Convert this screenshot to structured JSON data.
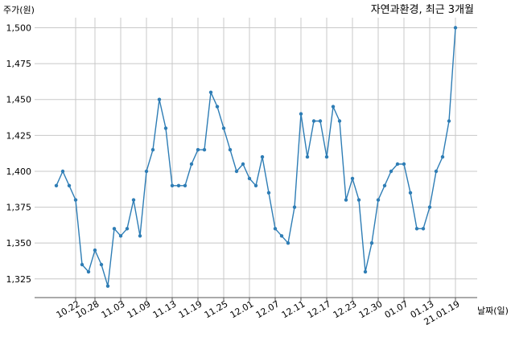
{
  "chart_data": {
    "type": "line",
    "title": "자연과환경, 최근 3개월",
    "xlabel": "날짜(일)",
    "ylabel": "주가(원)",
    "ylim": [
      1312,
      1507
    ],
    "yticks": [
      1325,
      1350,
      1375,
      1400,
      1425,
      1450,
      1475,
      1500
    ],
    "ytick_labels": [
      "1,325",
      "1,350",
      "1,375",
      "1,400",
      "1,425",
      "1,450",
      "1,475",
      "1,500"
    ],
    "xtick_labels": [
      "10.22",
      "10.28",
      "11.03",
      "11.09",
      "11.13",
      "11.19",
      "11.25",
      "12.01",
      "12.07",
      "12.11",
      "12.17",
      "12.23",
      "12.30",
      "01.07",
      "01.13",
      "21.01.19"
    ],
    "xtick_index": [
      3,
      6,
      10,
      14,
      18,
      22,
      26,
      30,
      34,
      38,
      42,
      46,
      50,
      54,
      58,
      62
    ],
    "grid": true,
    "series": [
      {
        "color": "#2e7db5",
        "values": [
          1390,
          1400,
          1390,
          1380,
          1335,
          1330,
          1345,
          1335,
          1320,
          1360,
          1355,
          1360,
          1380,
          1355,
          1400,
          1415,
          1450,
          1430,
          1390,
          1390,
          1390,
          1405,
          1415,
          1415,
          1455,
          1445,
          1430,
          1415,
          1400,
          1405,
          1395,
          1390,
          1410,
          1385,
          1360,
          1355,
          1350,
          1375,
          1440,
          1410,
          1435,
          1435,
          1410,
          1445,
          1435,
          1380,
          1395,
          1380,
          1330,
          1350,
          1380,
          1390,
          1400,
          1405,
          1405,
          1385,
          1360,
          1360,
          1375,
          1400,
          1410,
          1435,
          1500
        ]
      }
    ]
  }
}
